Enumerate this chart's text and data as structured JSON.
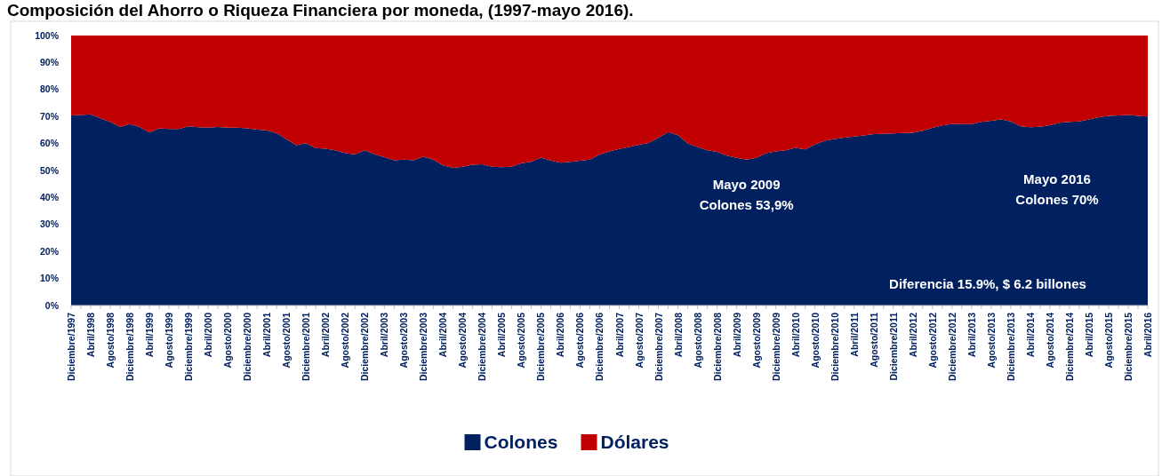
{
  "chart_data": {
    "type": "area",
    "stacked": true,
    "title": "Composición del Ahorro o Riqueza Financiera por moneda, (1997-mayo 2016).",
    "categories": [
      "Diciembre/1997",
      null,
      "Abril/1998",
      null,
      "Agosto/1998",
      null,
      "Diciembre/1998",
      null,
      "Abril/1999",
      null,
      "Agosto/1999",
      null,
      "Diciembre/1999",
      null,
      "Abril/2000",
      null,
      "Agosto/2000",
      null,
      "Diciembre/2000",
      null,
      "Abril/2001",
      null,
      "Agosto/2001",
      null,
      "Diciembre/2001",
      null,
      "Abril/2002",
      null,
      "Agosto/2002",
      null,
      "Diciembre/2002",
      null,
      "Abril/2003",
      null,
      "Agosto/2003",
      null,
      "Diciembre/2003",
      null,
      "Abril/2004",
      null,
      "Agosto/2004",
      null,
      "Diciembre/2004",
      null,
      "Abril/2005",
      null,
      "Agosto/2005",
      null,
      "Diciembre/2005",
      null,
      "Abril/2006",
      null,
      "Agosto/2006",
      null,
      "Diciembre/2006",
      null,
      "Abril/2007",
      null,
      "Agosto/2007",
      null,
      "Diciembre/2007",
      null,
      "Abril/2008",
      null,
      "Agosto/2008",
      null,
      "Diciembre/2008",
      null,
      "Abril/2009",
      null,
      "Agosto/2009",
      null,
      "Diciembre/2009",
      null,
      "Abril/2010",
      null,
      "Agosto/2010",
      null,
      "Diciembre/2010",
      null,
      "Abril/2011",
      null,
      "Agosto/2011",
      null,
      "Diciembre/2011",
      null,
      "Abril/2012",
      null,
      "Agosto/2012",
      null,
      "Diciembre/2012",
      null,
      "Abril/2013",
      null,
      "Agosto/2013",
      null,
      "Diciembre/2013",
      null,
      "Abril/2014",
      null,
      "Agosto/2014",
      null,
      "Diciembre/2014",
      null,
      "Abril/2015",
      null,
      "Agosto/2015",
      null,
      "Diciembre/2015",
      null,
      "Abril/2016"
    ],
    "series": [
      {
        "name": "Colones",
        "color": "#002060",
        "values": [
          70.4,
          70.6,
          70.8,
          69.3,
          68.0,
          66.1,
          67.2,
          66.1,
          64.1,
          65.6,
          65.4,
          65.4,
          66.4,
          66.0,
          65.9,
          66.1,
          65.9,
          65.9,
          65.6,
          65.1,
          64.9,
          63.8,
          61.6,
          59.4,
          60.1,
          58.3,
          58.1,
          57.5,
          56.4,
          56.0,
          57.5,
          56.0,
          54.9,
          53.8,
          54.0,
          53.8,
          55.1,
          54.0,
          51.9,
          51.0,
          51.4,
          52.1,
          52.3,
          51.4,
          51.2,
          51.4,
          52.7,
          53.2,
          54.8,
          53.7,
          52.9,
          53.2,
          53.6,
          54.0,
          55.9,
          57.1,
          58.0,
          58.7,
          59.5,
          60.2,
          62.2,
          64.2,
          63.1,
          60.0,
          58.7,
          57.5,
          56.9,
          55.5,
          54.7,
          54.0,
          54.7,
          56.4,
          57.1,
          57.5,
          58.4,
          57.8,
          59.7,
          61.0,
          61.7,
          62.2,
          62.6,
          63.0,
          63.5,
          63.6,
          63.7,
          63.9,
          64.0,
          64.7,
          65.8,
          66.7,
          67.3,
          67.2,
          67.2,
          68.0,
          68.4,
          68.9,
          68.2,
          66.4,
          66.0,
          66.2,
          66.8,
          67.7,
          68.0,
          68.2,
          68.9,
          69.7,
          70.2,
          70.4,
          70.6,
          70.2,
          70.0
        ]
      },
      {
        "name": "Dólares",
        "color": "#c00000",
        "values": [
          29.6,
          29.4,
          29.2,
          30.7,
          32.0,
          33.9,
          32.8,
          33.9,
          35.9,
          34.4,
          34.6,
          34.6,
          33.6,
          34.0,
          34.1,
          33.9,
          34.1,
          34.1,
          34.4,
          34.9,
          35.1,
          36.2,
          38.4,
          40.6,
          39.9,
          41.7,
          41.9,
          42.5,
          43.6,
          44.0,
          42.5,
          44.0,
          45.1,
          46.2,
          46.0,
          46.2,
          44.9,
          46.0,
          48.1,
          49.0,
          48.6,
          47.9,
          47.7,
          48.6,
          48.8,
          48.6,
          47.3,
          46.8,
          45.2,
          46.3,
          47.1,
          46.8,
          46.4,
          46.0,
          44.1,
          42.9,
          42.0,
          41.3,
          40.5,
          39.8,
          37.8,
          35.8,
          36.9,
          40.0,
          41.3,
          42.5,
          43.1,
          44.5,
          45.3,
          46.0,
          45.3,
          43.6,
          42.9,
          42.5,
          41.6,
          42.2,
          40.3,
          39.0,
          38.3,
          37.8,
          37.4,
          37.0,
          36.5,
          36.4,
          36.3,
          36.1,
          36.0,
          35.3,
          34.2,
          33.3,
          32.7,
          32.8,
          32.8,
          32.0,
          31.6,
          31.1,
          31.8,
          33.6,
          34.0,
          33.8,
          33.2,
          32.3,
          32.0,
          31.8,
          31.1,
          30.3,
          29.8,
          29.6,
          29.4,
          29.8,
          30.0
        ]
      }
    ],
    "ylim": [
      0,
      100
    ],
    "yticks": [
      {
        "value": 0,
        "label": "0%"
      },
      {
        "value": 10,
        "label": "10%"
      },
      {
        "value": 20,
        "label": "20%"
      },
      {
        "value": 30,
        "label": "30%"
      },
      {
        "value": 40,
        "label": "40%"
      },
      {
        "value": 50,
        "label": "50%"
      },
      {
        "value": 60,
        "label": "60%"
      },
      {
        "value": 70,
        "label": "70%"
      },
      {
        "value": 80,
        "label": "80%"
      },
      {
        "value": 90,
        "label": "90%"
      },
      {
        "value": 100,
        "label": "100%"
      }
    ],
    "grid": false,
    "legend": "bottom",
    "annotations": [
      "Mayo 2009\nColones 53,9%",
      "Mayo 2016\nColones 70%",
      "Diferencia 15.9%, $ 6.2 billones"
    ]
  }
}
